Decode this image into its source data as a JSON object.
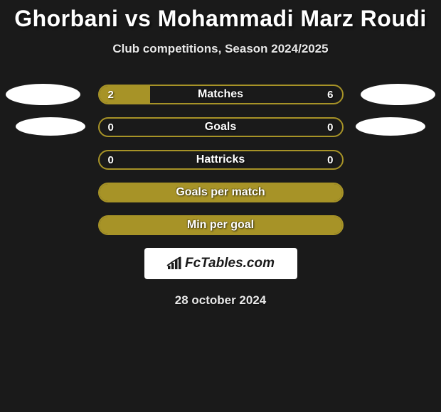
{
  "title": "Ghorbani vs Mohammadi Marz Roudi",
  "subtitle": "Club competitions, Season 2024/2025",
  "date": "28 october 2024",
  "colors": {
    "bar_border": "#a79327",
    "bar_fill": "#a79327",
    "background": "#1a1a1a",
    "text": "#ffffff",
    "subtext": "#e8e8e8",
    "pill": "#ffffff"
  },
  "bars": [
    {
      "label": "Matches",
      "left_value": "2",
      "right_value": "6",
      "left_pct": 21,
      "right_pct": 0,
      "has_side_pills": true,
      "pill_class": "row1"
    },
    {
      "label": "Goals",
      "left_value": "0",
      "right_value": "0",
      "left_pct": 0,
      "right_pct": 0,
      "has_side_pills": true,
      "pill_class": "row2"
    },
    {
      "label": "Hattricks",
      "left_value": "0",
      "right_value": "0",
      "left_pct": 0,
      "right_pct": 0,
      "has_side_pills": false
    },
    {
      "label": "Goals per match",
      "left_value": "",
      "right_value": "",
      "full_fill": true,
      "has_side_pills": false
    },
    {
      "label": "Min per goal",
      "left_value": "",
      "right_value": "",
      "full_fill": true,
      "has_side_pills": false
    }
  ],
  "logo": {
    "text": "FcTables.com"
  }
}
